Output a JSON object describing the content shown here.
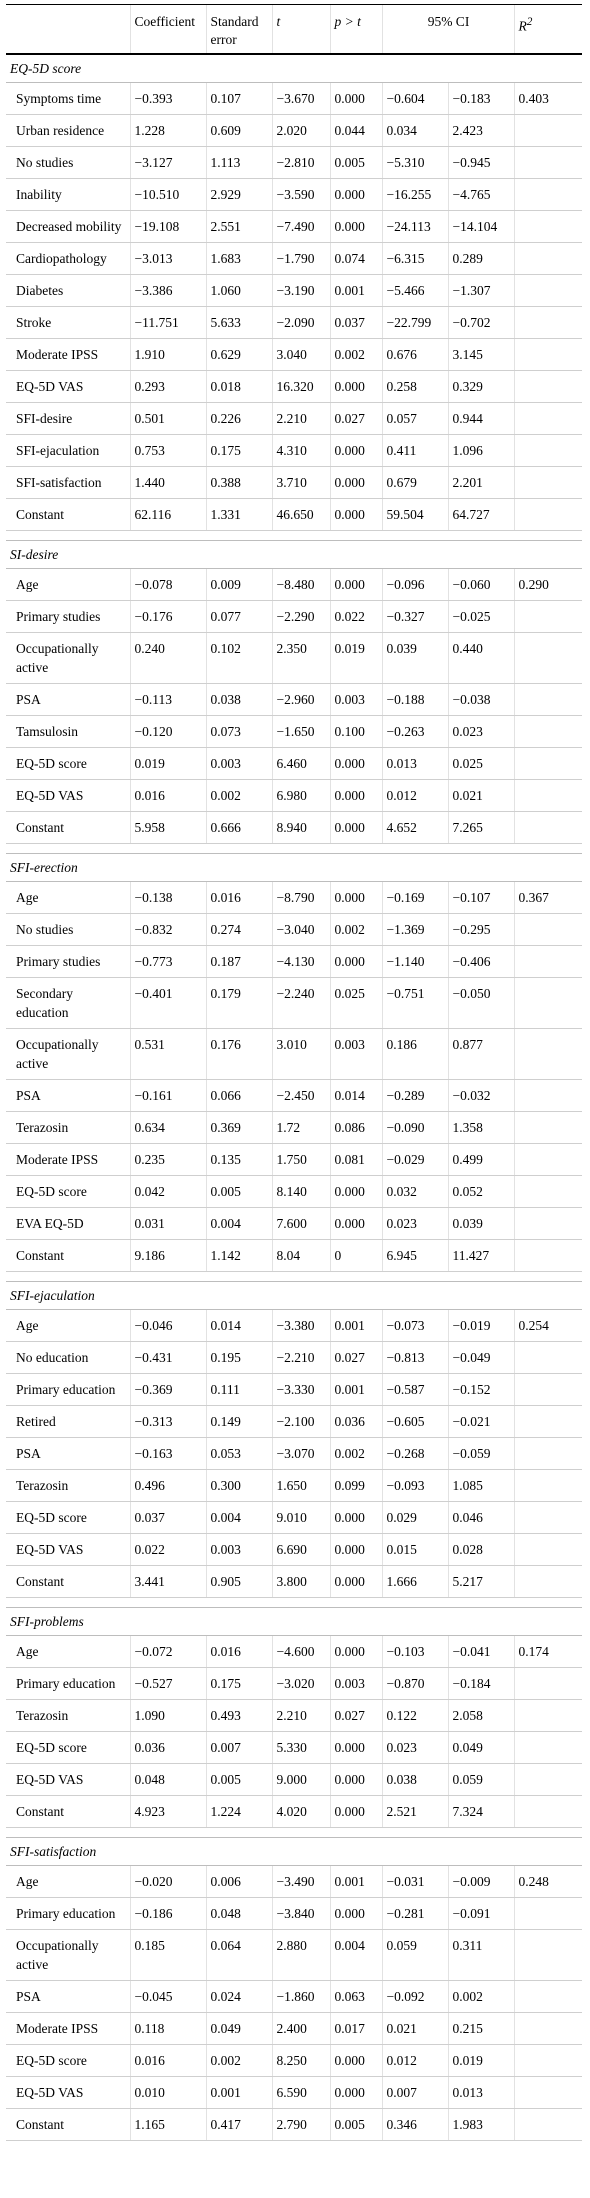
{
  "headers": {
    "coefficient": "Coefficient",
    "std_error_1": "Standard",
    "std_error_2": "error",
    "t": "t",
    "p": "p > t",
    "ci": "95% CI",
    "r2_base": "R",
    "r2_sup": "2"
  },
  "sections": [
    {
      "title": "EQ-5D score",
      "r2": "0.403",
      "rows": [
        {
          "name": "Symptoms time",
          "coef": "−0.393",
          "se": "0.107",
          "t": "−3.670",
          "p": "0.000",
          "ci_low": "−0.604",
          "ci_high": "−0.183"
        },
        {
          "name": "Urban residence",
          "coef": "1.228",
          "se": "0.609",
          "t": "2.020",
          "p": "0.044",
          "ci_low": "0.034",
          "ci_high": "2.423"
        },
        {
          "name": "No studies",
          "coef": "−3.127",
          "se": "1.113",
          "t": "−2.810",
          "p": "0.005",
          "ci_low": "−5.310",
          "ci_high": "−0.945"
        },
        {
          "name": "Inability",
          "coef": "−10.510",
          "se": "2.929",
          "t": "−3.590",
          "p": "0.000",
          "ci_low": "−16.255",
          "ci_high": "−4.765"
        },
        {
          "name": "Decreased mobility",
          "coef": "−19.108",
          "se": "2.551",
          "t": "−7.490",
          "p": "0.000",
          "ci_low": "−24.113",
          "ci_high": "−14.104"
        },
        {
          "name": "Cardiopathology",
          "coef": "−3.013",
          "se": "1.683",
          "t": "−1.790",
          "p": "0.074",
          "ci_low": "−6.315",
          "ci_high": "0.289"
        },
        {
          "name": "Diabetes",
          "coef": "−3.386",
          "se": "1.060",
          "t": "−3.190",
          "p": "0.001",
          "ci_low": "−5.466",
          "ci_high": "−1.307"
        },
        {
          "name": "Stroke",
          "coef": "−11.751",
          "se": "5.633",
          "t": "−2.090",
          "p": "0.037",
          "ci_low": "−22.799",
          "ci_high": "−0.702"
        },
        {
          "name": "Moderate IPSS",
          "coef": "1.910",
          "se": "0.629",
          "t": "3.040",
          "p": "0.002",
          "ci_low": "0.676",
          "ci_high": "3.145"
        },
        {
          "name": "EQ-5D VAS",
          "coef": "0.293",
          "se": "0.018",
          "t": "16.320",
          "p": "0.000",
          "ci_low": "0.258",
          "ci_high": "0.329"
        },
        {
          "name": "SFI-desire",
          "coef": "0.501",
          "se": "0.226",
          "t": "2.210",
          "p": "0.027",
          "ci_low": "0.057",
          "ci_high": "0.944"
        },
        {
          "name": "SFI-ejaculation",
          "coef": "0.753",
          "se": "0.175",
          "t": "4.310",
          "p": "0.000",
          "ci_low": "0.411",
          "ci_high": "1.096"
        },
        {
          "name": "SFI-satisfaction",
          "coef": "1.440",
          "se": "0.388",
          "t": "3.710",
          "p": "0.000",
          "ci_low": "0.679",
          "ci_high": "2.201"
        },
        {
          "name": "Constant",
          "coef": "62.116",
          "se": "1.331",
          "t": "46.650",
          "p": "0.000",
          "ci_low": "59.504",
          "ci_high": "64.727"
        }
      ]
    },
    {
      "title": "SI-desire",
      "r2": "0.290",
      "rows": [
        {
          "name": "Age",
          "coef": "−0.078",
          "se": "0.009",
          "t": "−8.480",
          "p": "0.000",
          "ci_low": "−0.096",
          "ci_high": "−0.060"
        },
        {
          "name": "Primary studies",
          "coef": "−0.176",
          "se": "0.077",
          "t": "−2.290",
          "p": "0.022",
          "ci_low": "−0.327",
          "ci_high": "−0.025"
        },
        {
          "name": "Occupationally active",
          "coef": "0.240",
          "se": "0.102",
          "t": "2.350",
          "p": "0.019",
          "ci_low": "0.039",
          "ci_high": "0.440"
        },
        {
          "name": "PSA",
          "coef": "−0.113",
          "se": "0.038",
          "t": "−2.960",
          "p": "0.003",
          "ci_low": "−0.188",
          "ci_high": "−0.038"
        },
        {
          "name": "Tamsulosin",
          "coef": "−0.120",
          "se": "0.073",
          "t": "−1.650",
          "p": "0.100",
          "ci_low": "−0.263",
          "ci_high": "0.023"
        },
        {
          "name": "EQ-5D score",
          "coef": "0.019",
          "se": "0.003",
          "t": "6.460",
          "p": "0.000",
          "ci_low": "0.013",
          "ci_high": "0.025"
        },
        {
          "name": "EQ-5D VAS",
          "coef": "0.016",
          "se": "0.002",
          "t": "6.980",
          "p": "0.000",
          "ci_low": "0.012",
          "ci_high": "0.021"
        },
        {
          "name": "Constant",
          "coef": "5.958",
          "se": "0.666",
          "t": "8.940",
          "p": "0.000",
          "ci_low": "4.652",
          "ci_high": "7.265"
        }
      ]
    },
    {
      "title": "SFI-erection",
      "r2": "0.367",
      "rows": [
        {
          "name": "Age",
          "coef": "−0.138",
          "se": "0.016",
          "t": "−8.790",
          "p": "0.000",
          "ci_low": "−0.169",
          "ci_high": "−0.107"
        },
        {
          "name": "No studies",
          "coef": "−0.832",
          "se": "0.274",
          "t": "−3.040",
          "p": "0.002",
          "ci_low": "−1.369",
          "ci_high": "−0.295"
        },
        {
          "name": "Primary studies",
          "coef": "−0.773",
          "se": "0.187",
          "t": "−4.130",
          "p": "0.000",
          "ci_low": "−1.140",
          "ci_high": "−0.406"
        },
        {
          "name": "Secondary education",
          "coef": "−0.401",
          "se": "0.179",
          "t": "−2.240",
          "p": "0.025",
          "ci_low": "−0.751",
          "ci_high": "−0.050"
        },
        {
          "name": "Occupationally active",
          "coef": "0.531",
          "se": "0.176",
          "t": "3.010",
          "p": "0.003",
          "ci_low": "0.186",
          "ci_high": "0.877"
        },
        {
          "name": "PSA",
          "coef": "−0.161",
          "se": "0.066",
          "t": "−2.450",
          "p": "0.014",
          "ci_low": "−0.289",
          "ci_high": "−0.032"
        },
        {
          "name": "Terazosin",
          "coef": "0.634",
          "se": "0.369",
          "t": "1.72",
          "p": "0.086",
          "ci_low": "−0.090",
          "ci_high": "1.358"
        },
        {
          "name": "Moderate IPSS",
          "coef": "0.235",
          "se": "0.135",
          "t": "1.750",
          "p": "0.081",
          "ci_low": "−0.029",
          "ci_high": "0.499"
        },
        {
          "name": "EQ-5D score",
          "coef": "0.042",
          "se": "0.005",
          "t": "8.140",
          "p": "0.000",
          "ci_low": "0.032",
          "ci_high": "0.052"
        },
        {
          "name": "EVA EQ-5D",
          "coef": "0.031",
          "se": "0.004",
          "t": "7.600",
          "p": "0.000",
          "ci_low": "0.023",
          "ci_high": "0.039"
        },
        {
          "name": "Constant",
          "coef": "9.186",
          "se": "1.142",
          "t": "8.04",
          "p": "0",
          "ci_low": "6.945",
          "ci_high": "11.427"
        }
      ]
    },
    {
      "title": "SFI-ejaculation",
      "r2": "0.254",
      "rows": [
        {
          "name": "Age",
          "coef": "−0.046",
          "se": "0.014",
          "t": "−3.380",
          "p": "0.001",
          "ci_low": "−0.073",
          "ci_high": "−0.019"
        },
        {
          "name": "No education",
          "coef": "−0.431",
          "se": "0.195",
          "t": "−2.210",
          "p": "0.027",
          "ci_low": "−0.813",
          "ci_high": "−0.049"
        },
        {
          "name": "Primary education",
          "coef": "−0.369",
          "se": "0.111",
          "t": "−3.330",
          "p": "0.001",
          "ci_low": "−0.587",
          "ci_high": "−0.152"
        },
        {
          "name": "Retired",
          "coef": "−0.313",
          "se": "0.149",
          "t": "−2.100",
          "p": "0.036",
          "ci_low": "−0.605",
          "ci_high": "−0.021"
        },
        {
          "name": "PSA",
          "coef": "−0.163",
          "se": "0.053",
          "t": "−3.070",
          "p": "0.002",
          "ci_low": "−0.268",
          "ci_high": "−0.059"
        },
        {
          "name": "Terazosin",
          "coef": "0.496",
          "se": "0.300",
          "t": "1.650",
          "p": "0.099",
          "ci_low": "−0.093",
          "ci_high": "1.085"
        },
        {
          "name": "EQ-5D score",
          "coef": "0.037",
          "se": "0.004",
          "t": "9.010",
          "p": "0.000",
          "ci_low": "0.029",
          "ci_high": "0.046"
        },
        {
          "name": "EQ-5D VAS",
          "coef": "0.022",
          "se": "0.003",
          "t": "6.690",
          "p": "0.000",
          "ci_low": "0.015",
          "ci_high": "0.028"
        },
        {
          "name": "Constant",
          "coef": "3.441",
          "se": "0.905",
          "t": "3.800",
          "p": "0.000",
          "ci_low": "1.666",
          "ci_high": "5.217"
        }
      ]
    },
    {
      "title": "SFI-problems",
      "r2": "0.174",
      "rows": [
        {
          "name": "Age",
          "coef": "−0.072",
          "se": "0.016",
          "t": "−4.600",
          "p": "0.000",
          "ci_low": "−0.103",
          "ci_high": "−0.041"
        },
        {
          "name": "Primary education",
          "coef": "−0.527",
          "se": "0.175",
          "t": "−3.020",
          "p": "0.003",
          "ci_low": "−0.870",
          "ci_high": "−0.184"
        },
        {
          "name": "Terazosin",
          "coef": "1.090",
          "se": "0.493",
          "t": "2.210",
          "p": "0.027",
          "ci_low": "0.122",
          "ci_high": "2.058"
        },
        {
          "name": "EQ-5D score",
          "coef": "0.036",
          "se": "0.007",
          "t": "5.330",
          "p": "0.000",
          "ci_low": "0.023",
          "ci_high": "0.049"
        },
        {
          "name": "EQ-5D VAS",
          "coef": "0.048",
          "se": "0.005",
          "t": "9.000",
          "p": "0.000",
          "ci_low": "0.038",
          "ci_high": "0.059"
        },
        {
          "name": "Constant",
          "coef": "4.923",
          "se": "1.224",
          "t": "4.020",
          "p": "0.000",
          "ci_low": "2.521",
          "ci_high": "7.324"
        }
      ]
    },
    {
      "title": "SFI-satisfaction",
      "r2": "0.248",
      "rows": [
        {
          "name": "Age",
          "coef": "−0.020",
          "se": "0.006",
          "t": "−3.490",
          "p": "0.001",
          "ci_low": "−0.031",
          "ci_high": "−0.009"
        },
        {
          "name": "Primary education",
          "coef": "−0.186",
          "se": "0.048",
          "t": "−3.840",
          "p": "0.000",
          "ci_low": "−0.281",
          "ci_high": "−0.091"
        },
        {
          "name": "Occupationally active",
          "coef": "0.185",
          "se": "0.064",
          "t": "2.880",
          "p": "0.004",
          "ci_low": "0.059",
          "ci_high": "0.311"
        },
        {
          "name": "PSA",
          "coef": "−0.045",
          "se": "0.024",
          "t": "−1.860",
          "p": "0.063",
          "ci_low": "−0.092",
          "ci_high": "0.002"
        },
        {
          "name": "Moderate IPSS",
          "coef": "0.118",
          "se": "0.049",
          "t": "2.400",
          "p": "0.017",
          "ci_low": "0.021",
          "ci_high": "0.215"
        },
        {
          "name": "EQ-5D score",
          "coef": "0.016",
          "se": "0.002",
          "t": "8.250",
          "p": "0.000",
          "ci_low": "0.012",
          "ci_high": "0.019"
        },
        {
          "name": "EQ-5D VAS",
          "coef": "0.010",
          "se": "0.001",
          "t": "6.590",
          "p": "0.000",
          "ci_low": "0.007",
          "ci_high": "0.013"
        },
        {
          "name": "Constant",
          "coef": "1.165",
          "se": "0.417",
          "t": "2.790",
          "p": "0.005",
          "ci_low": "0.346",
          "ci_high": "1.983"
        }
      ]
    }
  ]
}
